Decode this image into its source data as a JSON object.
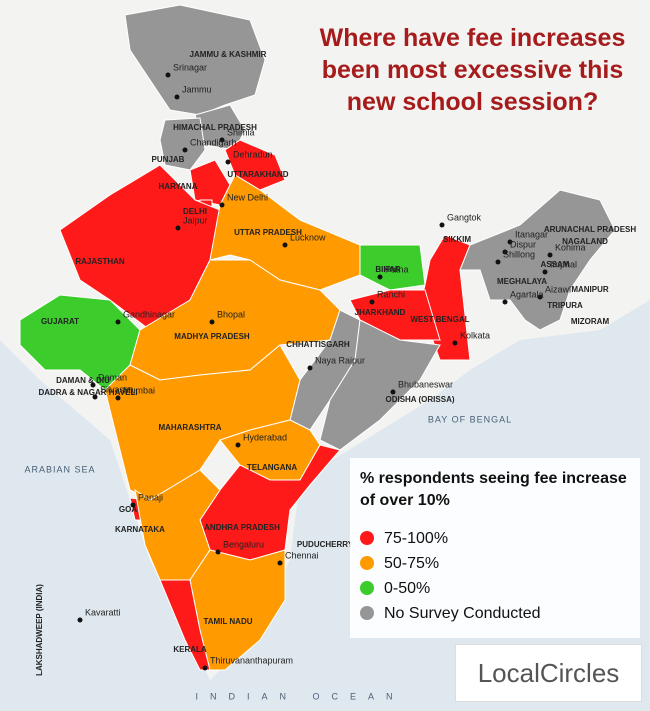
{
  "title": "Where have fee increases been most excessive this new school session?",
  "legend": {
    "title": "% respondents seeing fee increase of over 10%",
    "items": [
      {
        "label": "75-100%",
        "color": "#ff1a1a"
      },
      {
        "label": "50-75%",
        "color": "#ff9a00"
      },
      {
        "label": "0-50%",
        "color": "#3ccc2c"
      },
      {
        "label": "No Survey Conducted",
        "color": "#969696"
      }
    ]
  },
  "states": [
    {
      "label": "JAMMU & KASHMIR",
      "category": 3
    },
    {
      "label": "HIMACHAL PRADESH",
      "category": 3
    },
    {
      "label": "PUNJAB",
      "category": 3
    },
    {
      "label": "UTTARAKHAND",
      "category": 0
    },
    {
      "label": "HARYANA",
      "category": 0
    },
    {
      "label": "DELHI",
      "category": 0
    },
    {
      "label": "RAJASTHAN",
      "category": 0
    },
    {
      "label": "UTTAR PRADESH",
      "category": 1
    },
    {
      "label": "BIHAR",
      "category": 2
    },
    {
      "label": "SIKKIM",
      "category": 0
    },
    {
      "label": "WEST BENGAL",
      "category": 0
    },
    {
      "label": "JHARKHAND",
      "category": 0
    },
    {
      "label": "GUJARAT",
      "category": 2
    },
    {
      "label": "MADHYA PRADESH",
      "category": 1
    },
    {
      "label": "CHHATTISGARH",
      "category": 3
    },
    {
      "label": "ODISHA (ORISSA)",
      "category": 3
    },
    {
      "label": "MAHARASHTRA",
      "category": 1
    },
    {
      "label": "TELANGANA",
      "category": 1
    },
    {
      "label": "ANDHRA PRADESH",
      "category": 0
    },
    {
      "label": "GOA",
      "category": 0
    },
    {
      "label": "KARNATAKA",
      "category": 1
    },
    {
      "label": "TAMIL NADU",
      "category": 1
    },
    {
      "label": "KERALA",
      "category": 0
    },
    {
      "label": "ARUNACHAL PRADESH",
      "category": 3
    }
  ],
  "other_labels": [
    "ASSAM",
    "NAGALAND",
    "MEGHALAYA",
    "MANIPUR",
    "TRIPURA",
    "MIZORAM",
    "DAMAN & DIU",
    "DADRA & NAGAR HAVELI",
    "PUDUCHERRY",
    "LAKSHADWEEP (INDIA)"
  ],
  "cities": [
    "Srinagar",
    "Jammu",
    "Shimla",
    "Chandigarh",
    "Dehradun",
    "New Delhi",
    "Jaipur",
    "Lucknow",
    "Patna",
    "Gangtok",
    "Itanagar",
    "Dispur",
    "Shillong",
    "Kohima",
    "Imphal",
    "Aizawl",
    "Agartala",
    "Ranchi",
    "Kolkata",
    "Gandhinagar",
    "Bhopal",
    "Naya Raipur",
    "Bhubaneswar",
    "Daman",
    "Silvassa",
    "Mumbai",
    "Hyderabad",
    "Panaji",
    "Bengaluru",
    "Chennai",
    "Kavaratti",
    "Thiruvananthapuram"
  ],
  "seas": [
    "ARABIAN SEA",
    "BAY OF BENGAL",
    "INDIAN OCEAN"
  ],
  "logo": "LocalCircles"
}
